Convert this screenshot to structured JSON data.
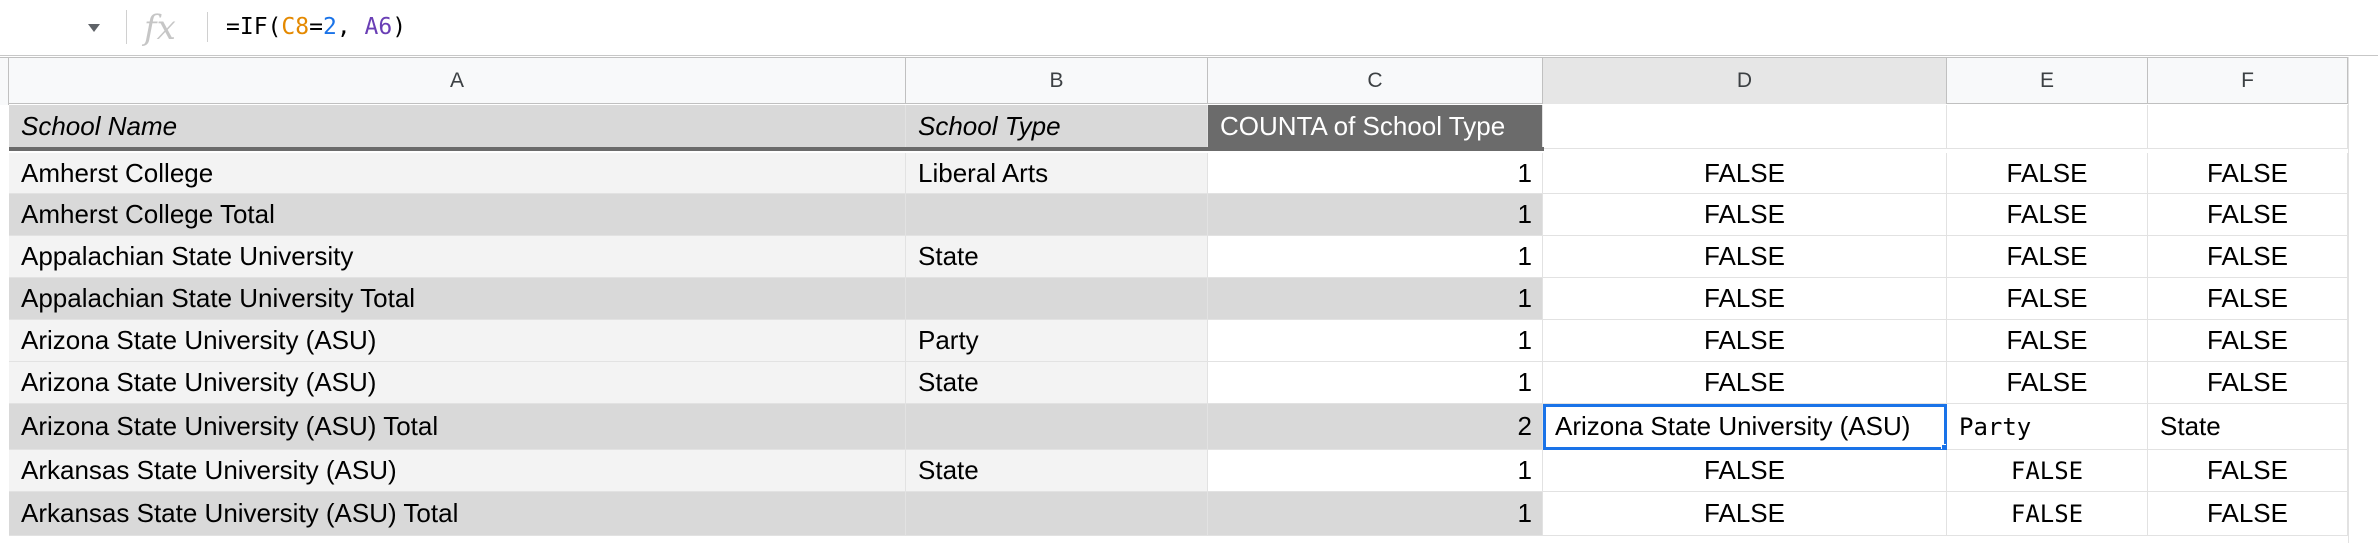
{
  "formula_bar": {
    "fx_label": "fx",
    "formula_prefix": "=IF(",
    "formula_ref1": "C8",
    "formula_eq": "=",
    "formula_num": "2",
    "formula_sep": ", ",
    "formula_ref2": "A6",
    "formula_suffix": ")"
  },
  "columns": [
    "A",
    "B",
    "C",
    "D",
    "E",
    "F"
  ],
  "header_row": {
    "a": "School Name",
    "b": "School Type",
    "c": "COUNTA of School Type",
    "d": "",
    "e": "",
    "f": ""
  },
  "rows": [
    {
      "a": "Amherst College",
      "b": "Liberal Arts",
      "c": "1",
      "d": "FALSE",
      "e": "FALSE",
      "f": "FALSE"
    },
    {
      "a": "Amherst College Total",
      "b": "",
      "c": "1",
      "d": "FALSE",
      "e": "FALSE",
      "f": "FALSE"
    },
    {
      "a": "Appalachian State University",
      "b": "State",
      "c": "1",
      "d": "FALSE",
      "e": "FALSE",
      "f": "FALSE"
    },
    {
      "a": "Appalachian State University Total",
      "b": "",
      "c": "1",
      "d": "FALSE",
      "e": "FALSE",
      "f": "FALSE"
    },
    {
      "a": "Arizona State University (ASU)",
      "b": "Party",
      "c": "1",
      "d": "FALSE",
      "e": "FALSE",
      "f": "FALSE"
    },
    {
      "a": "Arizona State University (ASU)",
      "b": "State",
      "c": "1",
      "d": "FALSE",
      "e": "FALSE",
      "f": "FALSE"
    },
    {
      "a": "Arizona State University (ASU) Total",
      "b": "",
      "c": "2",
      "d": "Arizona State University (ASU)",
      "e": "Party",
      "f": "State"
    },
    {
      "a": "Arkansas State University (ASU)",
      "b": "State",
      "c": "1",
      "d": "FALSE",
      "e": "FALSE",
      "f": "FALSE"
    },
    {
      "a": "Arkansas State University (ASU) Total",
      "b": "",
      "c": "1",
      "d": "FALSE",
      "e": "FALSE",
      "f": "FALSE"
    }
  ]
}
